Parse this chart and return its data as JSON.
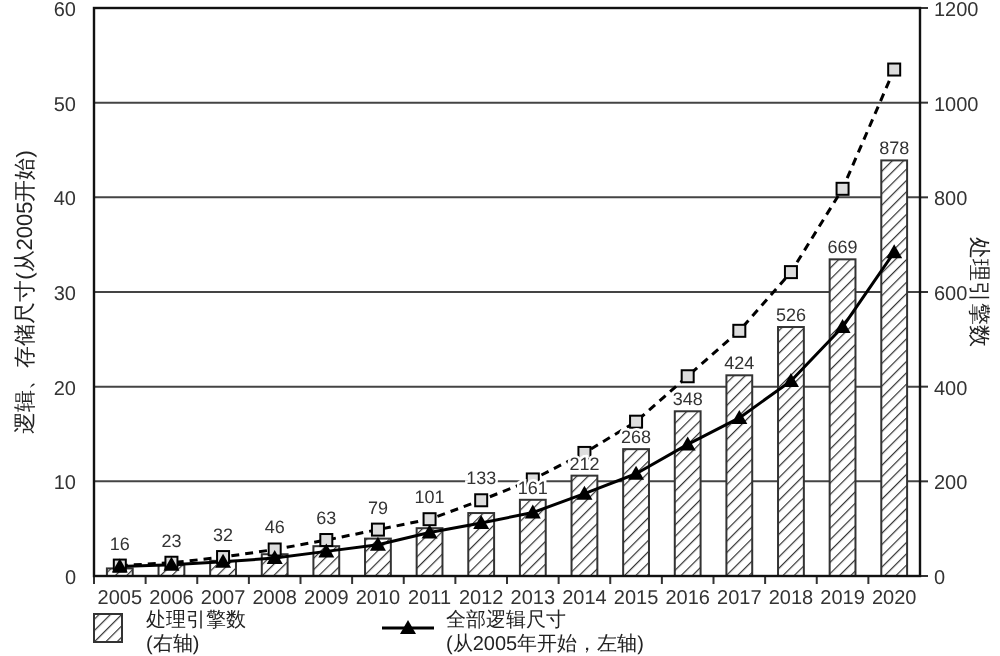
{
  "chart_data": {
    "type": "bar",
    "ylabel": "逻辑、存储尺寸(从2005开始)",
    "y2label": "处理引擎数",
    "categories": [
      "2005",
      "2006",
      "2007",
      "2008",
      "2009",
      "2010",
      "2011",
      "2012",
      "2013",
      "2014",
      "2015",
      "2016",
      "2017",
      "2018",
      "2019",
      "2020"
    ],
    "series": [
      {
        "name": "处理引擎数 (右轴)",
        "axis": "y2",
        "color": "#333333",
        "data_labels": true,
        "values": [
          16,
          23,
          32,
          46,
          63,
          79,
          101,
          133,
          161,
          212,
          268,
          348,
          424,
          526,
          669,
          878
        ]
      },
      {
        "name": "全部逻辑尺寸 (从2005年开始，左轴)",
        "type": "line",
        "color": "#000000",
        "marker": "triangle",
        "line_style": "solid",
        "values": [
          1.0,
          1.2,
          1.5,
          1.9,
          2.6,
          3.3,
          4.6,
          5.6,
          6.7,
          8.7,
          10.8,
          13.9,
          16.7,
          20.6,
          26.3,
          34.2
        ]
      },
      {
        "type": "line",
        "color": "#000000",
        "marker": "square",
        "line_style": "dashed",
        "values": [
          1.1,
          1.4,
          2.0,
          2.8,
          3.8,
          4.9,
          6.0,
          8.0,
          10.2,
          13.0,
          16.3,
          21.1,
          25.9,
          32.1,
          40.9,
          53.5
        ]
      }
    ],
    "ylim": [
      0,
      60
    ],
    "yticks": [
      0,
      10,
      20,
      30,
      40,
      50,
      60
    ],
    "y2lim": [
      0,
      1200
    ],
    "y2ticks": [
      0,
      200,
      400,
      600,
      800,
      1000,
      1200
    ],
    "grid": "y",
    "legend": "bottom"
  }
}
